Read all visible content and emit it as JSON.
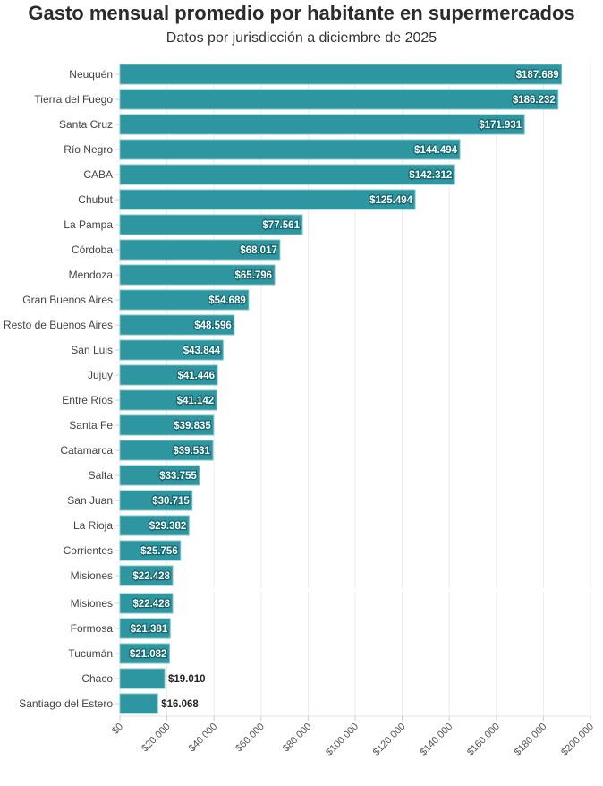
{
  "chart_data": {
    "type": "bar",
    "orientation": "horizontal",
    "title": "Gasto mensual promedio por habitante en supermercados",
    "subtitle": "Datos por jurisdicción a diciembre de 2025",
    "xlabel": "",
    "ylabel": "",
    "xlim": [
      0,
      200000
    ],
    "grid": true,
    "color": "#2e96a0",
    "categories": [
      "Neuquén",
      "Tierra del Fuego",
      "Santa Cruz",
      "Río Negro",
      "CABA",
      "Chubut",
      "La Pampa",
      "Córdoba",
      "Mendoza",
      "Gran Buenos Aires",
      "Resto de Buenos Aires",
      "San Luis",
      "Jujuy",
      "Entre Ríos",
      "Santa Fe",
      "Catamarca",
      "Salta",
      "San Juan",
      "La Rioja",
      "Corrientes",
      "Misiones",
      "Misiones",
      "Formosa",
      "Tucumán",
      "Chaco",
      "Santiago del Estero"
    ],
    "values": [
      187689,
      186232,
      171931,
      144494,
      142312,
      125494,
      77561,
      68017,
      65796,
      54689,
      48596,
      43844,
      41446,
      41142,
      39835,
      39531,
      33755,
      30715,
      29382,
      25756,
      22428,
      22428,
      21381,
      21082,
      19010,
      16068
    ],
    "labels": [
      "$187.689",
      "$186.232",
      "$171.931",
      "$144.494",
      "$142.312",
      "$125.494",
      "$77.561",
      "$68.017",
      "$65.796",
      "$54.689",
      "$48.596",
      "$43.844",
      "$41.446",
      "$41.142",
      "$39.835",
      "$39.531",
      "$33.755",
      "$30.715",
      "$29.382",
      "$25.756",
      "$22.428",
      "$22.428",
      "$21.381",
      "$21.082",
      "$19.010",
      "$16.068"
    ],
    "xticks": [
      0,
      20000,
      40000,
      60000,
      80000,
      100000,
      120000,
      140000,
      160000,
      180000,
      200000
    ],
    "xtick_labels": [
      "$0",
      "$20.000",
      "$40.000",
      "$60.000",
      "$80.000",
      "$100.000",
      "$120.000",
      "$140.000",
      "$160.000",
      "$180.000",
      "$200.000"
    ]
  }
}
